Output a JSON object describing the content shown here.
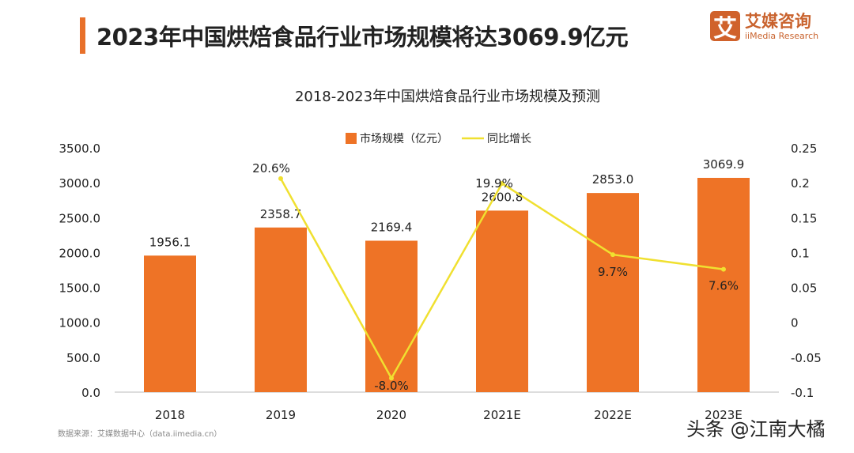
{
  "header": {
    "title": "2023年中国烘焙食品行业市场规模将达3069.9亿元"
  },
  "logo": {
    "mark": "艾",
    "name_cn": "艾媒咨询",
    "name_en": "iiMedia Research"
  },
  "source": "数据来源：艾媒数据中心（data.iimedia.cn）",
  "watermark": "头条 @江南大橘",
  "colors": {
    "bar": "#ee7326",
    "line": "#f0e030",
    "accent": "#e8702a"
  },
  "chart_data": {
    "type": "bar+line",
    "title": "2018-2023年中国烘焙食品行业市场规模及预测",
    "categories": [
      "2018",
      "2019",
      "2020",
      "2021E",
      "2022E",
      "2023E"
    ],
    "series": [
      {
        "name": "市场规模（亿元）",
        "type": "bar",
        "axis": "left",
        "values": [
          1956.1,
          2358.7,
          2169.4,
          2600.8,
          2853.0,
          3069.9
        ],
        "labels": [
          "1956.1",
          "2358.7",
          "2169.4",
          "2600.8",
          "2853.0",
          "3069.9"
        ]
      },
      {
        "name": "同比增长",
        "type": "line",
        "axis": "right",
        "values": [
          null,
          0.206,
          -0.08,
          0.199,
          0.097,
          0.076
        ],
        "labels": [
          "",
          "20.6%",
          "-8.0%",
          "19.9%",
          "9.7%",
          "7.6%"
        ]
      }
    ],
    "y_left": {
      "range": [
        0,
        3500
      ],
      "ticks": [
        "0.0",
        "500.0",
        "1000.0",
        "1500.0",
        "2000.0",
        "2500.0",
        "3000.0",
        "3500.0"
      ]
    },
    "y_right": {
      "range": [
        -0.1,
        0.25
      ],
      "ticks": [
        "-0.1",
        "-0.05",
        "0",
        "0.05",
        "0.1",
        "0.15",
        "0.2",
        "0.25"
      ]
    },
    "legend": "top-center",
    "grid": false
  }
}
